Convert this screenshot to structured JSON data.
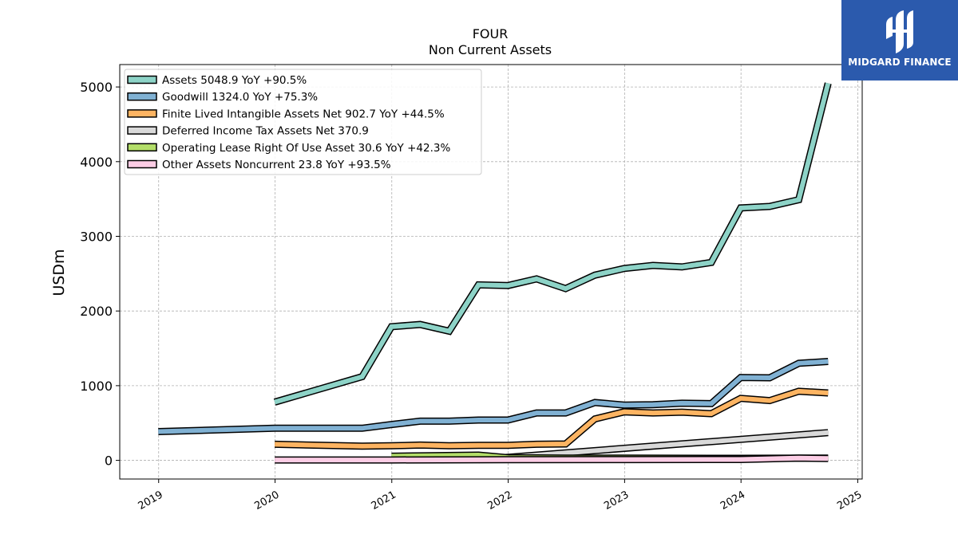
{
  "chart_data": {
    "type": "line",
    "title": "FOUR",
    "subtitle": "Non Current  Assets",
    "ylabel": "USDm",
    "xlabel": "",
    "xlim": [
      "2018-09-01",
      "2025-01-15"
    ],
    "ylim": [
      -250,
      5300
    ],
    "yticks": [
      0,
      1000,
      2000,
      3000,
      4000,
      5000
    ],
    "xticks": [
      "2019",
      "2020",
      "2021",
      "2022",
      "2023",
      "2024",
      "2025"
    ],
    "grid": true,
    "legend_position": "top-left",
    "series": [
      {
        "name": "Assets  5048.9 YoY +90.5%",
        "color": "#8dd3c7",
        "points": [
          [
            "2019-12-31",
            780
          ],
          [
            "2020-09-30",
            1120
          ],
          [
            "2020-12-31",
            1790
          ],
          [
            "2021-03-31",
            1820
          ],
          [
            "2021-06-30",
            1730
          ],
          [
            "2021-09-30",
            2350
          ],
          [
            "2021-12-31",
            2340
          ],
          [
            "2022-03-31",
            2430
          ],
          [
            "2022-06-30",
            2300
          ],
          [
            "2022-09-30",
            2480
          ],
          [
            "2022-12-31",
            2570
          ],
          [
            "2023-03-31",
            2610
          ],
          [
            "2023-06-30",
            2590
          ],
          [
            "2023-09-30",
            2650
          ],
          [
            "2023-12-31",
            3380
          ],
          [
            "2024-03-31",
            3400
          ],
          [
            "2024-06-30",
            3490
          ],
          [
            "2024-09-30",
            5049
          ]
        ]
      },
      {
        "name": "Goodwill  1324.0 YoY +75.3%",
        "color": "#80b1d3",
        "points": [
          [
            "2018-12-31",
            385
          ],
          [
            "2019-12-31",
            430
          ],
          [
            "2020-09-30",
            430
          ],
          [
            "2020-12-31",
            480
          ],
          [
            "2021-03-31",
            525
          ],
          [
            "2021-06-30",
            525
          ],
          [
            "2021-09-30",
            540
          ],
          [
            "2021-12-31",
            540
          ],
          [
            "2022-03-31",
            635
          ],
          [
            "2022-06-30",
            635
          ],
          [
            "2022-09-30",
            775
          ],
          [
            "2022-12-31",
            740
          ],
          [
            "2023-03-31",
            745
          ],
          [
            "2023-06-30",
            765
          ],
          [
            "2023-09-30",
            760
          ],
          [
            "2023-12-31",
            1110
          ],
          [
            "2024-03-31",
            1105
          ],
          [
            "2024-06-30",
            1300
          ],
          [
            "2024-09-30",
            1324
          ]
        ]
      },
      {
        "name": "Finite Lived Intangible Assets Net  902.7 YoY +44.5%",
        "color": "#fdb462",
        "points": [
          [
            "2019-12-31",
            215
          ],
          [
            "2020-09-30",
            190
          ],
          [
            "2020-12-31",
            195
          ],
          [
            "2021-03-31",
            205
          ],
          [
            "2021-06-30",
            195
          ],
          [
            "2021-09-30",
            200
          ],
          [
            "2021-12-31",
            200
          ],
          [
            "2022-03-31",
            215
          ],
          [
            "2022-06-30",
            220
          ],
          [
            "2022-09-30",
            555
          ],
          [
            "2022-12-31",
            650
          ],
          [
            "2023-03-31",
            635
          ],
          [
            "2023-06-30",
            645
          ],
          [
            "2023-09-30",
            625
          ],
          [
            "2023-12-31",
            830
          ],
          [
            "2024-03-31",
            800
          ],
          [
            "2024-06-30",
            925
          ],
          [
            "2024-09-30",
            903
          ]
        ]
      },
      {
        "name": "Deferred Income Tax Assets Net  370.9",
        "color": "#d9d9d9",
        "points": [
          [
            "2021-09-30",
            10
          ],
          [
            "2024-09-30",
            371
          ]
        ]
      },
      {
        "name": "Operating Lease Right Of Use Asset  30.6 YoY +42.3%",
        "color": "#b3de69",
        "points": [
          [
            "2020-12-31",
            55
          ],
          [
            "2021-09-30",
            70
          ],
          [
            "2021-12-31",
            35
          ],
          [
            "2022-06-30",
            30
          ],
          [
            "2022-12-31",
            30
          ],
          [
            "2023-12-31",
            28
          ],
          [
            "2024-09-30",
            31
          ]
        ]
      },
      {
        "name": "Other Assets Noncurrent  23.8 YoY +93.5%",
        "color": "#fccde5",
        "points": [
          [
            "2019-12-31",
            5
          ],
          [
            "2020-12-31",
            5
          ],
          [
            "2021-12-31",
            8
          ],
          [
            "2022-12-31",
            10
          ],
          [
            "2023-12-31",
            12
          ],
          [
            "2024-06-30",
            30
          ],
          [
            "2024-09-30",
            24
          ]
        ]
      }
    ]
  },
  "logo": {
    "name": "MIDGARD FINANCE"
  }
}
